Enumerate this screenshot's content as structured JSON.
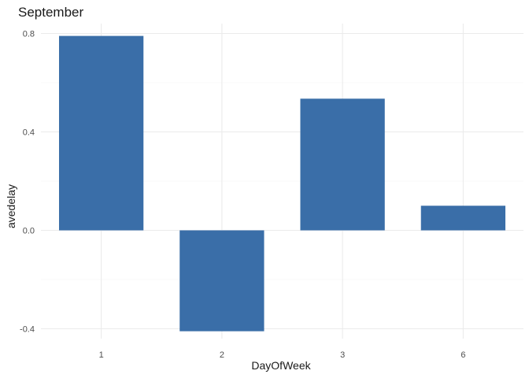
{
  "chart_data": {
    "type": "bar",
    "title": "September",
    "xlabel": "DayOfWeek",
    "ylabel": "avedelay",
    "categories": [
      "1",
      "2",
      "3",
      "6"
    ],
    "values": [
      0.79,
      -0.41,
      0.535,
      0.1
    ],
    "ylim": [
      -0.44,
      0.84
    ],
    "yticks": [
      -0.4,
      0.0,
      0.4,
      0.8
    ],
    "ytick_labels": [
      "-0.4",
      "0.0",
      "0.4",
      "0.8"
    ],
    "grid": true,
    "legend": "none",
    "bar_color": "#3A6EA8",
    "theme": "minimal"
  }
}
